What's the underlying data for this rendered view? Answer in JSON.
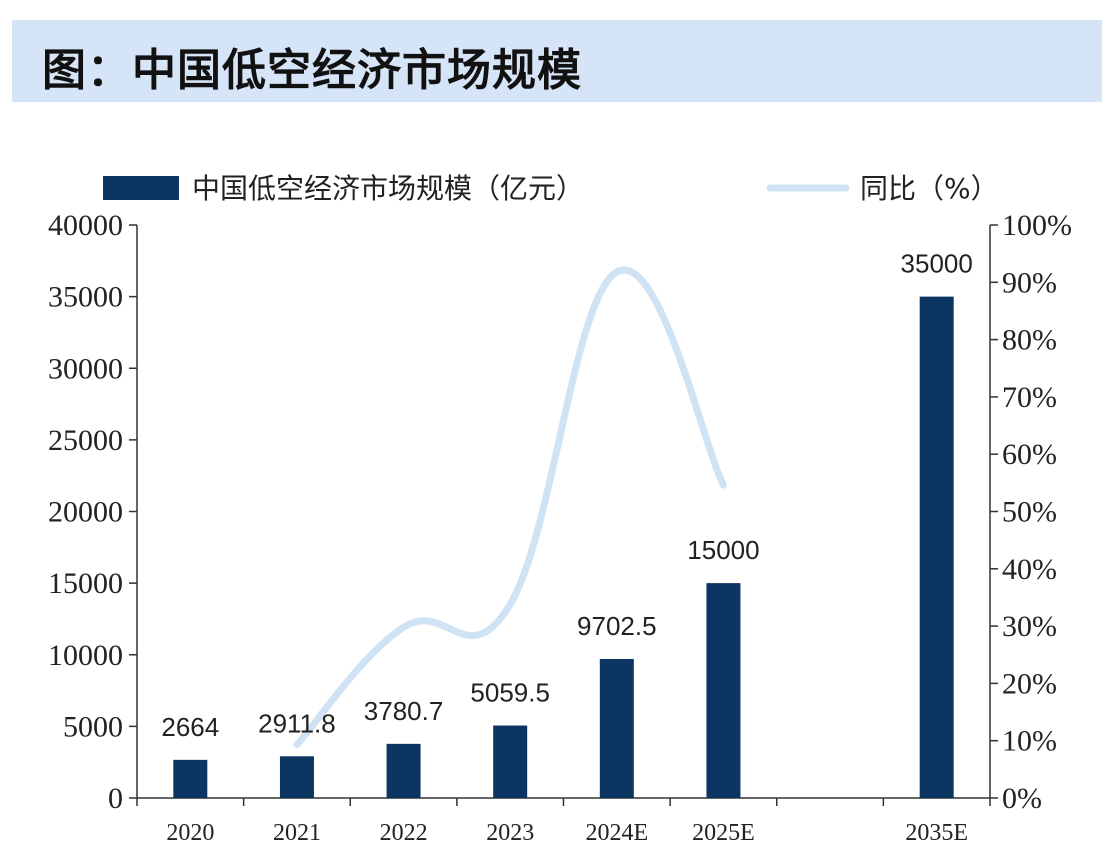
{
  "header": {
    "title": "图：中国低空经济市场规模"
  },
  "chart_data": {
    "type": "bar",
    "title": "图：中国低空经济市场规模",
    "categories": [
      "2020",
      "2021",
      "2022",
      "2023",
      "2024E",
      "2025E",
      "",
      "2035E"
    ],
    "series": [
      {
        "name": "中国低空经济市场规模（亿元）",
        "type": "bar",
        "axis": "left",
        "values": [
          2664,
          2911.8,
          3780.7,
          5059.5,
          9702.5,
          15000,
          null,
          35000
        ],
        "labels": [
          "2664",
          "2911.8",
          "3780.7",
          "5059.5",
          "9702.5",
          "15000",
          "",
          "35000"
        ]
      },
      {
        "name": "同比（%）",
        "type": "line",
        "axis": "right",
        "values": [
          null,
          9.3,
          29.8,
          33.8,
          91.8,
          54.6,
          null,
          null
        ]
      }
    ],
    "ylim": [
      0,
      40000
    ],
    "y_ticks": [
      "0",
      "5000",
      "10000",
      "15000",
      "20000",
      "25000",
      "30000",
      "35000",
      "40000"
    ],
    "y2lim": [
      0,
      100
    ],
    "y2_ticks": [
      "0%",
      "10%",
      "20%",
      "30%",
      "40%",
      "50%",
      "60%",
      "70%",
      "80%",
      "90%",
      "100%"
    ],
    "grid": false,
    "legend": "top",
    "colors": {
      "bar": "#0c3561",
      "line": "#cfe3f4"
    }
  }
}
